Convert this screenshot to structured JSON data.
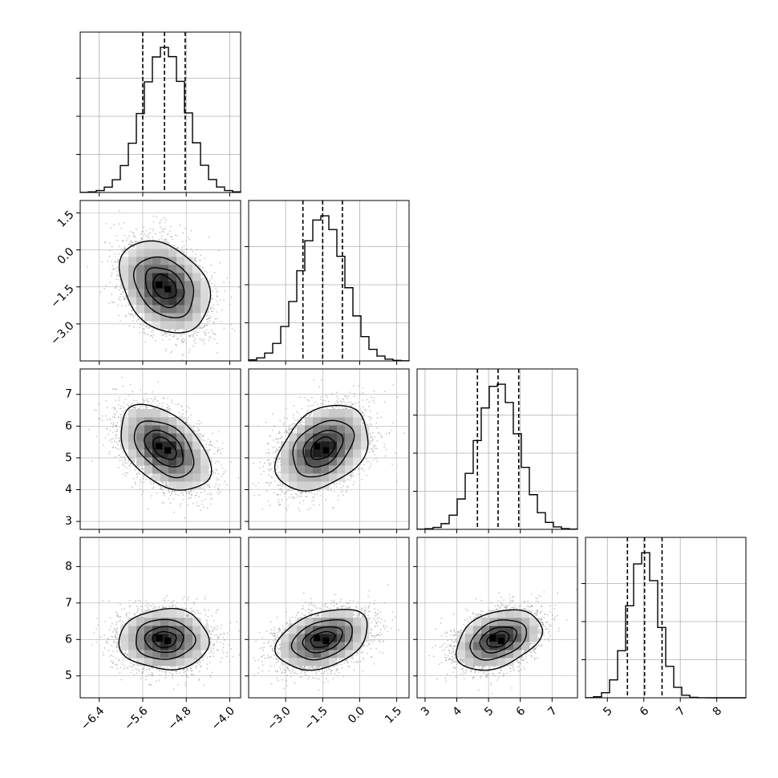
{
  "chart_data": {
    "type": "corner",
    "params": [
      {
        "range": [
          -6.75,
          -3.8
        ],
        "ticks": [
          "−6.4",
          "−5.6",
          "−4.8",
          "−4.0"
        ],
        "tick_values": [
          -6.4,
          -5.6,
          -4.8,
          -4.0
        ],
        "mean": -5.2,
        "sd": 0.4,
        "quantiles": [
          -5.6,
          -5.2,
          -4.82
        ]
      },
      {
        "range": [
          -4.5,
          2.0
        ],
        "ticks": [
          "−3.0",
          "−1.5",
          "0.0",
          "1.5"
        ],
        "tick_values": [
          -3.0,
          -1.5,
          0.0,
          1.5
        ],
        "mean": -1.5,
        "sd": 0.9,
        "quantiles": [
          -2.3,
          -1.5,
          -0.7
        ]
      },
      {
        "range": [
          2.75,
          7.8
        ],
        "ticks": [
          "3",
          "4",
          "5",
          "6",
          "7"
        ],
        "tick_values": [
          3,
          4,
          5,
          6,
          7
        ],
        "mean": 5.3,
        "sd": 0.65,
        "quantiles": [
          4.65,
          5.3,
          5.95
        ]
      },
      {
        "range": [
          4.4,
          8.8
        ],
        "ticks": [
          "5",
          "6",
          "7",
          "8"
        ],
        "tick_values": [
          5,
          6,
          7,
          8
        ],
        "mean": 6.0,
        "sd": 0.4,
        "quantiles": [
          5.55,
          6.02,
          6.5
        ]
      }
    ],
    "correlations": [
      [
        1.0,
        -0.3,
        -0.45,
        0.0
      ],
      [
        -0.3,
        1.0,
        0.35,
        0.35
      ],
      [
        -0.45,
        0.35,
        1.0,
        0.35
      ],
      [
        0.0,
        0.35,
        0.35,
        1.0
      ]
    ],
    "grid": true,
    "quantile_line_style": "dashed",
    "contour_levels_sigma": [
      0.5,
      1.0,
      1.5,
      2.0
    ]
  },
  "colors": {
    "line": "#000000",
    "grid": "#b0b0b0",
    "points": "#9a9a9a"
  }
}
